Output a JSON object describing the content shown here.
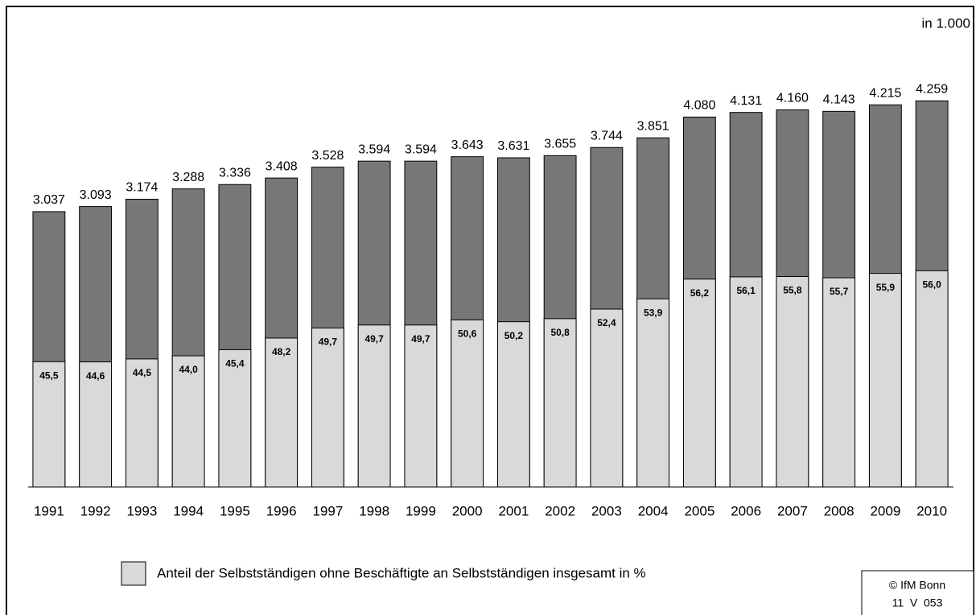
{
  "chart_data": {
    "type": "bar",
    "unit_label": "in 1.000",
    "categories": [
      "1991",
      "1992",
      "1993",
      "1994",
      "1995",
      "1996",
      "1997",
      "1998",
      "1999",
      "2000",
      "2001",
      "2002",
      "2003",
      "2004",
      "2005",
      "2006",
      "2007",
      "2008",
      "2009",
      "2010"
    ],
    "values": [
      3037,
      3093,
      3174,
      3288,
      3336,
      3408,
      3528,
      3594,
      3594,
      3643,
      3631,
      3655,
      3744,
      3851,
      4080,
      4131,
      4160,
      4143,
      4215,
      4259
    ],
    "value_labels": [
      "3.037",
      "3.093",
      "3.174",
      "3.288",
      "3.336",
      "3.408",
      "3.528",
      "3.594",
      "3.594",
      "3.643",
      "3.631",
      "3.655",
      "3.744",
      "3.851",
      "4.080",
      "4.131",
      "4.160",
      "4.143",
      "4.215",
      "4.259"
    ],
    "color": "#777777",
    "share": {
      "name": "Anteil der Selbstständigen ohne Beschäftigte an Selbstständigen insgesamt in %",
      "color": "#d9d9d9",
      "values": [
        45.5,
        44.6,
        44.5,
        44.0,
        45.4,
        48.2,
        49.7,
        49.7,
        49.7,
        50.6,
        50.2,
        50.8,
        52.4,
        53.9,
        56.2,
        56.1,
        55.8,
        55.7,
        55.9,
        56.0
      ],
      "value_labels": [
        "45,5",
        "44,6",
        "44,5",
        "44,0",
        "45,4",
        "48,2",
        "49,7",
        "49,7",
        "49,7",
        "50,6",
        "50,2",
        "50,8",
        "52,4",
        "53,9",
        "56,2",
        "56,1",
        "55,8",
        "55,7",
        "55,9",
        "56,0"
      ]
    },
    "ylim": [
      0,
      5300
    ],
    "footer": [
      "© IfM Bonn",
      "11  V  053"
    ]
  }
}
